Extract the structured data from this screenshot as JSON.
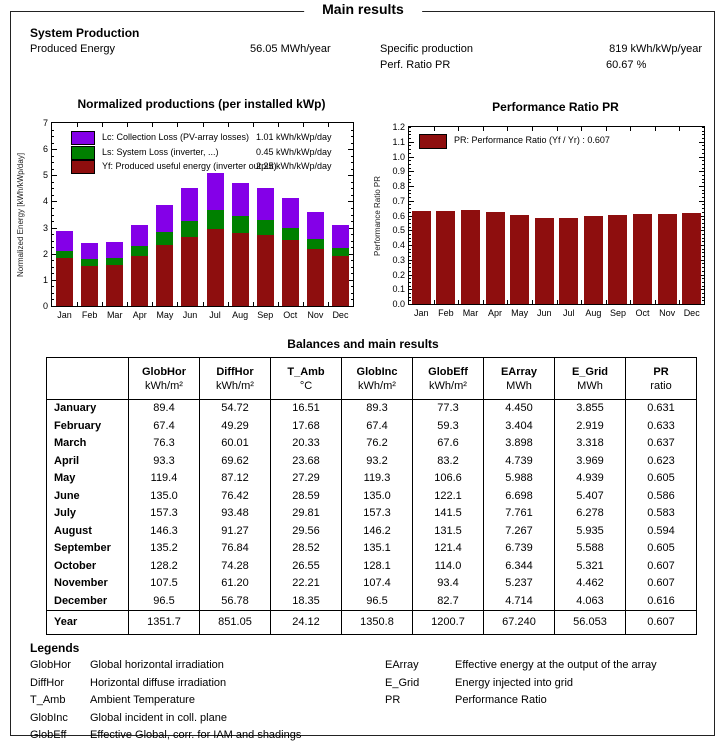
{
  "page": {
    "title": "Main results"
  },
  "system_production": {
    "heading": "System Production",
    "produced_energy_label": "Produced Energy",
    "produced_energy_value": "56.05 MWh/year",
    "specific_production_label": "Specific production",
    "specific_production_value": "819 kWh/kWp/year",
    "perf_ratio_label": "Perf. Ratio PR",
    "perf_ratio_value": "60.67 %"
  },
  "months": [
    "Jan",
    "Feb",
    "Mar",
    "Apr",
    "May",
    "Jun",
    "Jul",
    "Aug",
    "Sep",
    "Oct",
    "Nov",
    "Dec"
  ],
  "chart_data": [
    {
      "type": "bar",
      "stacked": true,
      "title": "Normalized productions (per installed kWp)",
      "ylabel": "Normalized Energy [kWh/kWp/day]",
      "ylim": [
        0,
        7
      ],
      "ytick_step": 1,
      "categories": [
        "Jan",
        "Feb",
        "Mar",
        "Apr",
        "May",
        "Jun",
        "Jul",
        "Aug",
        "Sep",
        "Oct",
        "Nov",
        "Dec"
      ],
      "series": [
        {
          "name": "Yf: Produced useful energy  (inverter output)",
          "color": "#8E0E0E",
          "values": [
            1.82,
            1.52,
            1.56,
            1.93,
            2.33,
            2.63,
            2.96,
            2.8,
            2.72,
            2.51,
            2.17,
            1.92
          ]
        },
        {
          "name": "Ls: System Loss  (inverter, ...)",
          "color": "#008000",
          "values": [
            0.28,
            0.26,
            0.28,
            0.38,
            0.49,
            0.63,
            0.7,
            0.63,
            0.56,
            0.48,
            0.38,
            0.3
          ]
        },
        {
          "name": "Lc: Collection Loss (PV-array losses)",
          "color": "#8400E8",
          "values": [
            0.78,
            0.63,
            0.62,
            0.8,
            1.03,
            1.24,
            1.41,
            1.29,
            1.22,
            1.14,
            1.03,
            0.89
          ]
        }
      ],
      "legend": [
        {
          "swatch": "#8400E8",
          "label": "Lc: Collection Loss (PV-array losses)",
          "value": "1.01 kWh/kWp/day"
        },
        {
          "swatch": "#008000",
          "label": "Ls: System Loss  (inverter, ...)",
          "value": "0.45 kWh/kWp/day"
        },
        {
          "swatch": "#8E0E0E",
          "label": "Yf: Produced useful energy  (inverter output)",
          "value": "2.25 kWh/kWp/day"
        }
      ],
      "legend_position": "top-left-inside"
    },
    {
      "type": "bar",
      "stacked": false,
      "title": "Performance Ratio PR",
      "ylabel": "Performance Ratio PR",
      "ylim": [
        0,
        1.2
      ],
      "ytick_step": 0.1,
      "color": "#8E0E0E",
      "categories": [
        "Jan",
        "Feb",
        "Mar",
        "Apr",
        "May",
        "Jun",
        "Jul",
        "Aug",
        "Sep",
        "Oct",
        "Nov",
        "Dec"
      ],
      "values": [
        0.631,
        0.633,
        0.637,
        0.623,
        0.605,
        0.586,
        0.583,
        0.594,
        0.605,
        0.607,
        0.607,
        0.616
      ],
      "legend": [
        {
          "swatch": "#8E0E0E",
          "label": "PR: Performance Ratio (Yf / Yr) :  0.607",
          "value": ""
        }
      ],
      "legend_position": "top-left-inside"
    }
  ],
  "table": {
    "title": "Balances and main results",
    "columns": [
      {
        "name": "",
        "unit": ""
      },
      {
        "name": "GlobHor",
        "unit": "kWh/m²"
      },
      {
        "name": "DiffHor",
        "unit": "kWh/m²"
      },
      {
        "name": "T_Amb",
        "unit": "°C"
      },
      {
        "name": "GlobInc",
        "unit": "kWh/m²"
      },
      {
        "name": "GlobEff",
        "unit": "kWh/m²"
      },
      {
        "name": "EArray",
        "unit": "MWh"
      },
      {
        "name": "E_Grid",
        "unit": "MWh"
      },
      {
        "name": "PR",
        "unit": "ratio"
      }
    ],
    "rows": [
      [
        "January",
        "89.4",
        "54.72",
        "16.51",
        "89.3",
        "77.3",
        "4.450",
        "3.855",
        "0.631"
      ],
      [
        "February",
        "67.4",
        "49.29",
        "17.68",
        "67.4",
        "59.3",
        "3.404",
        "2.919",
        "0.633"
      ],
      [
        "March",
        "76.3",
        "60.01",
        "20.33",
        "76.2",
        "67.6",
        "3.898",
        "3.318",
        "0.637"
      ],
      [
        "April",
        "93.3",
        "69.62",
        "23.68",
        "93.2",
        "83.2",
        "4.739",
        "3.969",
        "0.623"
      ],
      [
        "May",
        "119.4",
        "87.12",
        "27.29",
        "119.3",
        "106.6",
        "5.988",
        "4.939",
        "0.605"
      ],
      [
        "June",
        "135.0",
        "76.42",
        "28.59",
        "135.0",
        "122.1",
        "6.698",
        "5.407",
        "0.586"
      ],
      [
        "July",
        "157.3",
        "93.48",
        "29.81",
        "157.3",
        "141.5",
        "7.761",
        "6.278",
        "0.583"
      ],
      [
        "August",
        "146.3",
        "91.27",
        "29.56",
        "146.2",
        "131.5",
        "7.267",
        "5.935",
        "0.594"
      ],
      [
        "September",
        "135.2",
        "76.84",
        "28.52",
        "135.1",
        "121.4",
        "6.739",
        "5.588",
        "0.605"
      ],
      [
        "October",
        "128.2",
        "74.28",
        "26.55",
        "128.1",
        "114.0",
        "6.344",
        "5.321",
        "0.607"
      ],
      [
        "November",
        "107.5",
        "61.20",
        "22.21",
        "107.4",
        "93.4",
        "5.237",
        "4.462",
        "0.607"
      ],
      [
        "December",
        "96.5",
        "56.78",
        "18.35",
        "96.5",
        "82.7",
        "4.714",
        "4.063",
        "0.616"
      ]
    ],
    "year_row": [
      "Year",
      "1351.7",
      "851.05",
      "24.12",
      "1350.8",
      "1200.7",
      "67.240",
      "56.053",
      "0.607"
    ]
  },
  "legends": {
    "heading": "Legends",
    "left": [
      {
        "term": "GlobHor",
        "definition": "Global horizontal irradiation"
      },
      {
        "term": "DiffHor",
        "definition": "Horizontal diffuse irradiation"
      },
      {
        "term": "T_Amb",
        "definition": "Ambient Temperature"
      },
      {
        "term": "GlobInc",
        "definition": "Global incident in coll. plane"
      },
      {
        "term": "GlobEff",
        "definition": "Effective Global, corr. for IAM and shadings"
      }
    ],
    "right": [
      {
        "term": "EArray",
        "definition": "Effective energy at the output of the array"
      },
      {
        "term": "E_Grid",
        "definition": "Energy injected into grid"
      },
      {
        "term": "PR",
        "definition": "Performance Ratio"
      }
    ]
  }
}
